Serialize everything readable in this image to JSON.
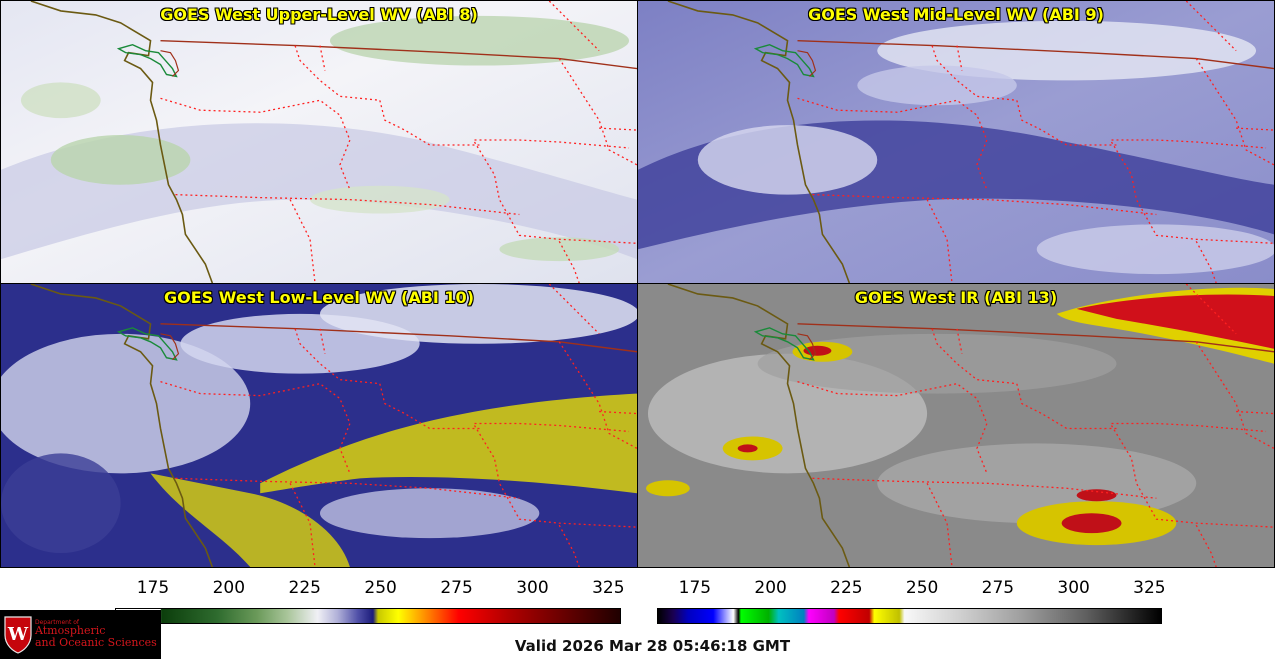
{
  "panels": {
    "upper": {
      "title": "GOES West Upper-Level WV (ABI 8)"
    },
    "mid": {
      "title": "GOES West Mid-Level WV (ABI 9)"
    },
    "low": {
      "title": "GOES West Low-Level WV (ABI 10)"
    },
    "ir": {
      "title": "GOES West IR (ABI 13)"
    }
  },
  "colorbars": {
    "wv_ticks": [
      "175",
      "200",
      "225",
      "250",
      "275",
      "300",
      "325"
    ],
    "ir_ticks": [
      "175",
      "200",
      "225",
      "250",
      "275",
      "300",
      "325"
    ]
  },
  "logo": {
    "department": "Department of",
    "line1": "Atmospheric",
    "line2": "and Oceanic Sciences"
  },
  "valid_time": "Valid 2026 Mar 28 05:46:18 GMT",
  "colors": {
    "title": "#ffff00",
    "border_state": "#ff2020",
    "border_country": "#a0301a",
    "coastline": "#6b5a12"
  }
}
